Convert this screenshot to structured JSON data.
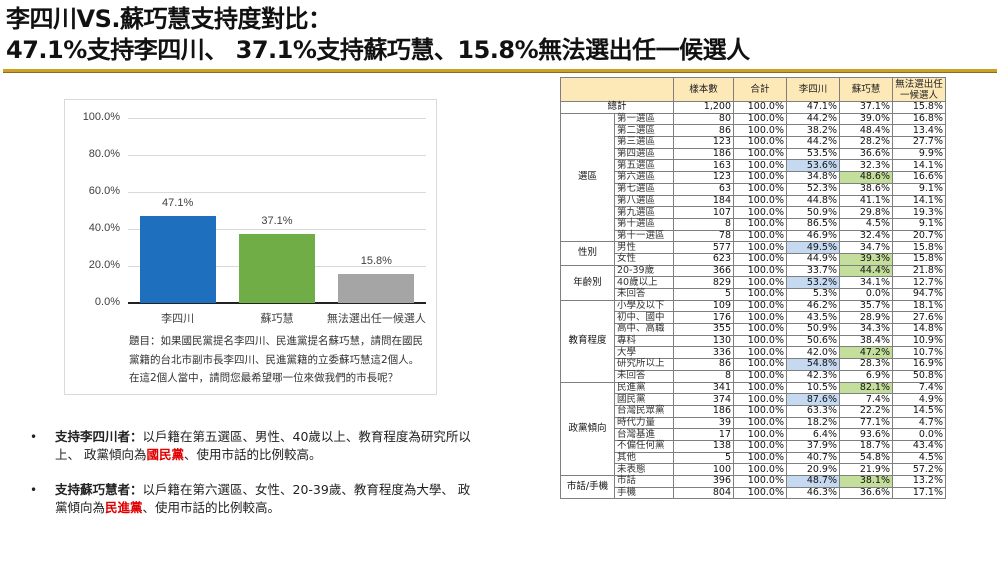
{
  "title": {
    "line1": "李四川VS.蘇巧慧支持度對比：",
    "line2": "47.1%支持李四川、 37.1%支持蘇巧慧、15.8%無法選出任一候選人"
  },
  "colors": {
    "title_rule": "#c9a227",
    "bar_li": "#1f6fbf",
    "bar_su": "#70ad47",
    "bar_none": "#a5a5a5",
    "header_bg": "#fde9b8",
    "highlight_blue": "#c5d9f1",
    "highlight_green": "#c4df9b",
    "note_red": "#e00000"
  },
  "chart_data": {
    "type": "bar",
    "title": "",
    "categories": [
      "李四川",
      "蘇巧慧",
      "無法選出任一候選人"
    ],
    "values": [
      47.1,
      37.1,
      15.8
    ],
    "value_labels": [
      "47.1%",
      "37.1%",
      "15.8%"
    ],
    "xlabel": "",
    "ylabel": "",
    "ylim": [
      0,
      100
    ],
    "yticks": [
      "100.0%",
      "80.0%",
      "60.0%",
      "40.0%",
      "20.0%",
      "0.0%"
    ],
    "grid": true,
    "legend": "none",
    "bar_colors": [
      "#1f6fbf",
      "#70ad47",
      "#a5a5a5"
    ]
  },
  "chart": {
    "question": "題目：如果國民黨提名李四川、民進黨提名蘇巧慧，請問在國民黨籍的台北市副市長李四川、民進黨籍的立委蘇巧慧這2個人。在這2個人當中，請問您最希望哪一位來做我們的市長呢？"
  },
  "notes": [
    {
      "lead": "支持李四川者：",
      "text_before": "以戶籍在第五選區、男性、40歲以上、教育程度為研究所以上、 政黨傾向為",
      "highlight": "國民黨",
      "text_after": "、使用市話的比例較高。"
    },
    {
      "lead": "支持蘇巧慧者：",
      "text_before": "以戶籍在第六選區、女性、20-39歲、教育程度為大學、 政黨傾向為",
      "highlight": "民進黨",
      "text_after": "、使用市話的比例較高。"
    }
  ],
  "table": {
    "headers": [
      "樣本數",
      "合計",
      "李四川",
      "蘇巧慧",
      "無法選出任一候選人"
    ],
    "total": {
      "label": "總計",
      "n": "1,200",
      "sum": "100.0%",
      "li": "47.1%",
      "su": "37.1%",
      "none": "15.8%"
    },
    "groups": [
      {
        "name": "選區",
        "rows": [
          {
            "label": "第一選區",
            "n": "80",
            "sum": "100.0%",
            "li": "44.2%",
            "su": "39.0%",
            "none": "16.8%",
            "hl": ""
          },
          {
            "label": "第二選區",
            "n": "86",
            "sum": "100.0%",
            "li": "38.2%",
            "su": "48.4%",
            "none": "13.4%",
            "hl": ""
          },
          {
            "label": "第三選區",
            "n": "123",
            "sum": "100.0%",
            "li": "44.2%",
            "su": "28.2%",
            "none": "27.7%",
            "hl": ""
          },
          {
            "label": "第四選區",
            "n": "186",
            "sum": "100.0%",
            "li": "53.5%",
            "su": "36.6%",
            "none": "9.9%",
            "hl": ""
          },
          {
            "label": "第五選區",
            "n": "163",
            "sum": "100.0%",
            "li": "53.6%",
            "su": "32.3%",
            "none": "14.1%",
            "hl": "li"
          },
          {
            "label": "第六選區",
            "n": "123",
            "sum": "100.0%",
            "li": "34.8%",
            "su": "48.6%",
            "none": "16.6%",
            "hl": "su"
          },
          {
            "label": "第七選區",
            "n": "63",
            "sum": "100.0%",
            "li": "52.3%",
            "su": "38.6%",
            "none": "9.1%",
            "hl": ""
          },
          {
            "label": "第八選區",
            "n": "184",
            "sum": "100.0%",
            "li": "44.8%",
            "su": "41.1%",
            "none": "14.1%",
            "hl": ""
          },
          {
            "label": "第九選區",
            "n": "107",
            "sum": "100.0%",
            "li": "50.9%",
            "su": "29.8%",
            "none": "19.3%",
            "hl": ""
          },
          {
            "label": "第十選區",
            "n": "8",
            "sum": "100.0%",
            "li": "86.5%",
            "su": "4.5%",
            "none": "9.1%",
            "hl": ""
          },
          {
            "label": "第十一選區",
            "n": "78",
            "sum": "100.0%",
            "li": "46.9%",
            "su": "32.4%",
            "none": "20.7%",
            "hl": ""
          }
        ]
      },
      {
        "name": "性別",
        "rows": [
          {
            "label": "男性",
            "n": "577",
            "sum": "100.0%",
            "li": "49.5%",
            "su": "34.7%",
            "none": "15.8%",
            "hl": "li"
          },
          {
            "label": "女性",
            "n": "623",
            "sum": "100.0%",
            "li": "44.9%",
            "su": "39.3%",
            "none": "15.8%",
            "hl": "su"
          }
        ]
      },
      {
        "name": "年齡別",
        "rows": [
          {
            "label": "20-39歲",
            "n": "366",
            "sum": "100.0%",
            "li": "33.7%",
            "su": "44.4%",
            "none": "21.8%",
            "hl": "su"
          },
          {
            "label": "40歲以上",
            "n": "829",
            "sum": "100.0%",
            "li": "53.2%",
            "su": "34.1%",
            "none": "12.7%",
            "hl": "li"
          },
          {
            "label": "未回答",
            "n": "5",
            "sum": "100.0%",
            "li": "5.3%",
            "su": "0.0%",
            "none": "94.7%",
            "hl": ""
          }
        ]
      },
      {
        "name": "教育程度",
        "rows": [
          {
            "label": "小學及以下",
            "n": "109",
            "sum": "100.0%",
            "li": "46.2%",
            "su": "35.7%",
            "none": "18.1%",
            "hl": ""
          },
          {
            "label": "初中、國中",
            "n": "176",
            "sum": "100.0%",
            "li": "43.5%",
            "su": "28.9%",
            "none": "27.6%",
            "hl": ""
          },
          {
            "label": "高中、高職",
            "n": "355",
            "sum": "100.0%",
            "li": "50.9%",
            "su": "34.3%",
            "none": "14.8%",
            "hl": ""
          },
          {
            "label": "專科",
            "n": "130",
            "sum": "100.0%",
            "li": "50.6%",
            "su": "38.4%",
            "none": "10.9%",
            "hl": ""
          },
          {
            "label": "大學",
            "n": "336",
            "sum": "100.0%",
            "li": "42.0%",
            "su": "47.2%",
            "none": "10.7%",
            "hl": "su"
          },
          {
            "label": "研究所以上",
            "n": "86",
            "sum": "100.0%",
            "li": "54.8%",
            "su": "28.3%",
            "none": "16.9%",
            "hl": "li"
          },
          {
            "label": "未回答",
            "n": "8",
            "sum": "100.0%",
            "li": "42.3%",
            "su": "6.9%",
            "none": "50.8%",
            "hl": ""
          }
        ]
      },
      {
        "name": "政黨傾向",
        "rows": [
          {
            "label": "民進黨",
            "n": "341",
            "sum": "100.0%",
            "li": "10.5%",
            "su": "82.1%",
            "none": "7.4%",
            "hl": "su"
          },
          {
            "label": "國民黨",
            "n": "374",
            "sum": "100.0%",
            "li": "87.6%",
            "su": "7.4%",
            "none": "4.9%",
            "hl": "li"
          },
          {
            "label": "台灣民眾黨",
            "n": "186",
            "sum": "100.0%",
            "li": "63.3%",
            "su": "22.2%",
            "none": "14.5%",
            "hl": ""
          },
          {
            "label": "時代力量",
            "n": "39",
            "sum": "100.0%",
            "li": "18.2%",
            "su": "77.1%",
            "none": "4.7%",
            "hl": ""
          },
          {
            "label": "台灣基進",
            "n": "17",
            "sum": "100.0%",
            "li": "6.4%",
            "su": "93.6%",
            "none": "0.0%",
            "hl": ""
          },
          {
            "label": "不偏任何黨",
            "n": "138",
            "sum": "100.0%",
            "li": "37.9%",
            "su": "18.7%",
            "none": "43.4%",
            "hl": ""
          },
          {
            "label": "其他",
            "n": "5",
            "sum": "100.0%",
            "li": "40.7%",
            "su": "54.8%",
            "none": "4.5%",
            "hl": ""
          },
          {
            "label": "未表態",
            "n": "100",
            "sum": "100.0%",
            "li": "20.9%",
            "su": "21.9%",
            "none": "57.2%",
            "hl": ""
          }
        ]
      },
      {
        "name": "市話/手機",
        "rows": [
          {
            "label": "市話",
            "n": "396",
            "sum": "100.0%",
            "li": "48.7%",
            "su": "38.1%",
            "none": "13.2%",
            "hl": "li,su"
          },
          {
            "label": "手機",
            "n": "804",
            "sum": "100.0%",
            "li": "46.3%",
            "su": "36.6%",
            "none": "17.1%",
            "hl": ""
          }
        ]
      }
    ]
  }
}
